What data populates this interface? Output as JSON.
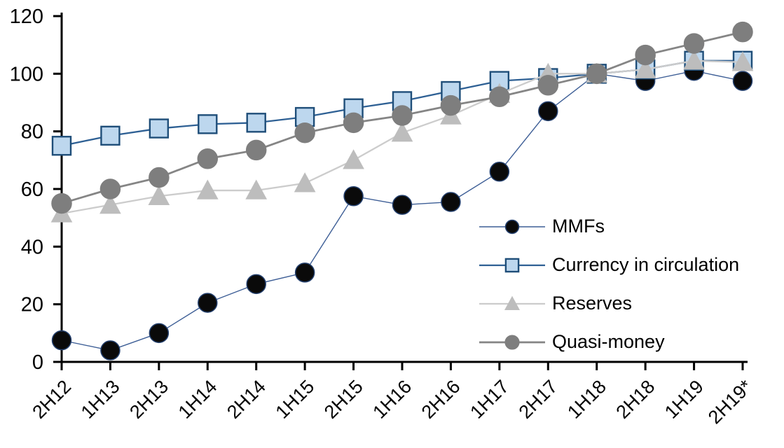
{
  "chart_data": {
    "type": "line",
    "title": "",
    "xlabel": "",
    "ylabel": "",
    "ylim": [
      0,
      120
    ],
    "yticks": [
      0,
      20,
      40,
      60,
      80,
      100,
      120
    ],
    "grid": false,
    "legend_position": "inside-right",
    "axis_color": "#000000",
    "categories": [
      "2H12",
      "1H13",
      "2H13",
      "1H14",
      "2H14",
      "1H15",
      "2H15",
      "1H16",
      "2H16",
      "1H17",
      "2H17",
      "1H18",
      "2H18",
      "1H19",
      "2H19*"
    ],
    "series": [
      {
        "name": "MMFs",
        "marker": "circle",
        "marker_size": 27,
        "marker_color": "#0a0a0a",
        "marker_edge": "#24406e",
        "line_color": "#3d5e96",
        "line_width": 1.4,
        "values": [
          7.5,
          4,
          10,
          20.5,
          27,
          31,
          57.5,
          54.5,
          55.5,
          66,
          87,
          100,
          97.5,
          101,
          97.5
        ]
      },
      {
        "name": "Currency in circulation",
        "marker": "square",
        "marker_size": 26,
        "marker_color": "#bdd7ee",
        "marker_edge": "#1f4e79",
        "line_color": "#2e6094",
        "line_width": 2.3,
        "values": [
          75,
          78.5,
          81,
          82.5,
          83,
          85,
          88,
          90.5,
          94,
          97.5,
          98.5,
          100,
          101.5,
          104.5,
          104.5
        ]
      },
      {
        "name": "Reserves",
        "marker": "triangle",
        "marker_size": 29,
        "marker_color": "#bdbdbd",
        "marker_edge": "#bdbdbd",
        "line_color": "#cccccc",
        "line_width": 2.3,
        "values": [
          51.5,
          54.5,
          57.5,
          59.5,
          59.5,
          62,
          70,
          79.5,
          85.5,
          93,
          100,
          100,
          101.5,
          104.5,
          104
        ]
      },
      {
        "name": "Quasi-money",
        "marker": "circle",
        "marker_size": 28,
        "marker_color": "#7e7e7e",
        "marker_edge": "#7e7e7e",
        "line_color": "#858585",
        "line_width": 2.8,
        "values": [
          55,
          60,
          64,
          70.5,
          73.5,
          79.5,
          83,
          85.5,
          89,
          92,
          96,
          100,
          106.5,
          110.5,
          114.5
        ]
      }
    ]
  }
}
